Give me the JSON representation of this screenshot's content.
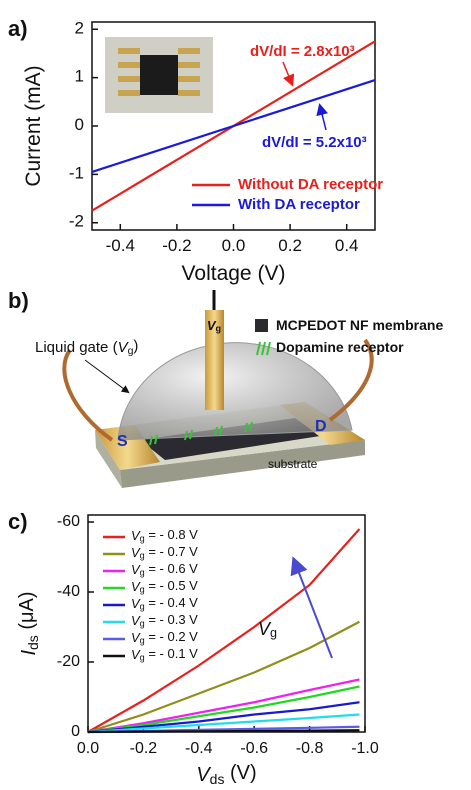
{
  "chart_data": [
    {
      "type": "line",
      "label": "a)",
      "xlabel": "Voltage (V)",
      "ylabel": "Current (mA)",
      "x": [
        -0.5,
        0,
        0.5
      ],
      "series": [
        {
          "name": "Without DA receptor",
          "color": "#e8201c",
          "values": [
            -1.75,
            0,
            1.75
          ]
        },
        {
          "name": "With DA receptor",
          "color": "#1a1ad8",
          "values": [
            -0.95,
            0,
            0.95
          ]
        }
      ],
      "annotations": [
        "dV/dI = 2.8x10³",
        "dV/dI = 5.2x10³"
      ],
      "xlim": [
        -0.5,
        0.5
      ],
      "ylim": [
        -2.15,
        2.15
      ],
      "xticks": [
        -0.4,
        -0.2,
        {
          "value": 0,
          "label": "0.0"
        },
        0.2,
        0.4
      ],
      "yticks": [
        -2,
        -1,
        0,
        1,
        2
      ],
      "legend": "lower right"
    },
    {
      "type": "line",
      "label": "c)",
      "xlabel": "Vds (V)",
      "ylabel": "Ids (μA)",
      "x": [
        0,
        -0.2,
        -0.4,
        -0.6,
        -0.8,
        -0.98
      ],
      "series": [
        {
          "name": "Vg = - 0.8 V",
          "color": "#e8201c",
          "values": [
            0,
            -9,
            -19,
            -30,
            -42,
            -58
          ]
        },
        {
          "name": "Vg = - 0.7 V",
          "color": "#8f8f1a",
          "values": [
            0,
            -5,
            -11,
            -17,
            -24,
            -31.5
          ]
        },
        {
          "name": "Vg = - 0.6 V",
          "color": "#ee22ee",
          "values": [
            0,
            -2.5,
            -5.5,
            -8.5,
            -12,
            -15
          ]
        },
        {
          "name": "Vg = - 0.5 V",
          "color": "#22d822",
          "values": [
            0,
            -2,
            -4.5,
            -7,
            -10,
            -13
          ]
        },
        {
          "name": "Vg = - 0.4 V",
          "color": "#1a1acc",
          "values": [
            0,
            -1.5,
            -3,
            -5,
            -6.5,
            -8.5
          ]
        },
        {
          "name": "Vg = - 0.3 V",
          "color": "#22dcec",
          "values": [
            0,
            -1,
            -2,
            -3,
            -4,
            -5
          ]
        },
        {
          "name": "Vg = - 0.2 V",
          "color": "#5a5aee",
          "values": [
            0,
            -0.3,
            -0.6,
            -0.9,
            -1.2,
            -1.5
          ]
        },
        {
          "name": "Vg = - 0.1 V",
          "color": "#111111",
          "values": [
            0,
            -0.1,
            -0.2,
            -0.3,
            -0.4,
            -0.5
          ]
        }
      ],
      "annotations": [
        "Vg"
      ],
      "xlim": [
        0,
        -1
      ],
      "ylim": [
        0,
        -62
      ],
      "xticks": [
        {
          "value": 0,
          "label": "0.0"
        },
        -0.2,
        -0.4,
        -0.6,
        -0.8,
        {
          "value": -1,
          "label": "-1.0"
        }
      ],
      "yticks": [
        -60,
        -40,
        -20,
        0
      ],
      "legend": "upper left"
    }
  ],
  "diagram": {
    "label": "b)",
    "gate": "Vg",
    "liquid_gate": "Liquid gate (Vg)",
    "legend": [
      "MCPEDOT NF membrane",
      "Dopamine receptor"
    ],
    "source": "S",
    "drain": "D",
    "substrate": "substrate"
  }
}
